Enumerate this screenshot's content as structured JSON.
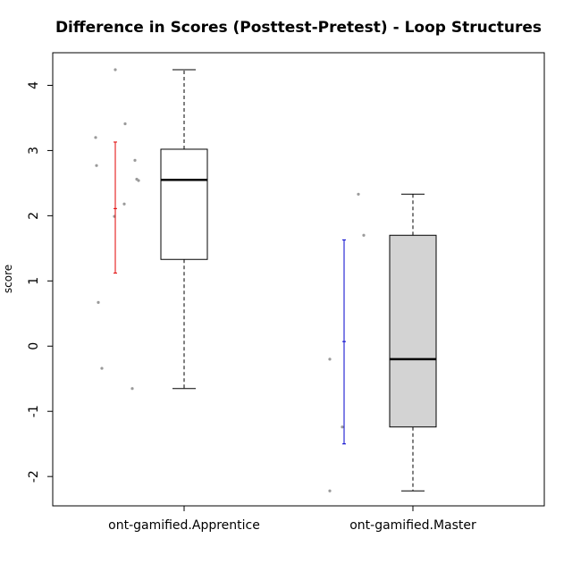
{
  "chart_data": {
    "type": "boxplot",
    "title": "Difference in Scores (Posttest-Pretest) - Loop Structures",
    "xlabel": "",
    "ylabel": "score",
    "ylim": [
      -2.45,
      4.5
    ],
    "yticks": [
      "-2",
      "-1",
      "0",
      "1",
      "2",
      "3",
      "4"
    ],
    "grid": false,
    "categories": [
      "ont-gamified.Apprentice",
      "ont-gamified.Master"
    ],
    "boxes": [
      {
        "name": "ont-gamified.Apprentice",
        "whisker_low": -0.65,
        "q1": 1.33,
        "median": 2.55,
        "q3": 3.02,
        "whisker_high": 4.24,
        "fill": "#ffffff",
        "points": [
          4.24,
          3.41,
          3.2,
          2.85,
          2.77,
          2.56,
          2.54,
          2.18,
          1.99,
          0.67,
          -0.34,
          -0.65
        ],
        "points_color": "#9a9a9a",
        "error_bar": {
          "low": 1.12,
          "mean": 2.11,
          "high": 3.13,
          "color": "#e00000"
        }
      },
      {
        "name": "ont-gamified.Master",
        "whisker_low": -2.22,
        "q1": -1.24,
        "median": -0.2,
        "q3": 1.7,
        "whisker_high": 2.33,
        "fill": "#d3d3d3",
        "points": [
          2.33,
          1.7,
          -0.2,
          -1.24,
          -2.22
        ],
        "points_color": "#9a9a9a",
        "error_bar": {
          "low": -1.5,
          "mean": 0.07,
          "high": 1.63,
          "color": "#0000cc"
        }
      }
    ]
  }
}
